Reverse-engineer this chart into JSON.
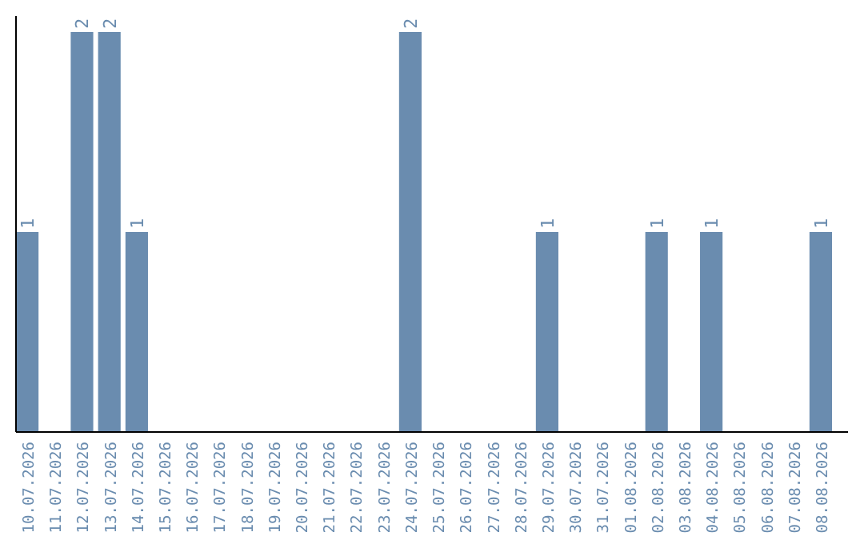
{
  "chart_data": {
    "type": "bar",
    "categories": [
      "10.07.2026",
      "11.07.2026",
      "12.07.2026",
      "13.07.2026",
      "14.07.2026",
      "15.07.2026",
      "16.07.2026",
      "17.07.2026",
      "18.07.2026",
      "19.07.2026",
      "20.07.2026",
      "21.07.2026",
      "22.07.2026",
      "23.07.2026",
      "24.07.2026",
      "25.07.2026",
      "26.07.2026",
      "27.07.2026",
      "28.07.2026",
      "29.07.2026",
      "30.07.2026",
      "31.07.2026",
      "01.08.2026",
      "02.08.2026",
      "03.08.2026",
      "04.08.2026",
      "05.08.2026",
      "06.08.2026",
      "07.08.2026",
      "08.08.2026"
    ],
    "values": [
      1,
      0,
      2,
      2,
      1,
      0,
      0,
      0,
      0,
      0,
      0,
      0,
      0,
      0,
      2,
      0,
      0,
      0,
      0,
      1,
      0,
      0,
      0,
      1,
      0,
      1,
      0,
      0,
      0,
      1
    ],
    "value_labels": [
      "1",
      null,
      "2",
      "2",
      "1",
      null,
      null,
      null,
      null,
      null,
      null,
      null,
      null,
      null,
      "2",
      null,
      null,
      null,
      null,
      "1",
      null,
      null,
      null,
      "1",
      null,
      "1",
      null,
      null,
      null,
      "1"
    ],
    "color": "#6a8caf",
    "ylim": [
      0,
      2
    ],
    "tick_labels": "x"
  }
}
